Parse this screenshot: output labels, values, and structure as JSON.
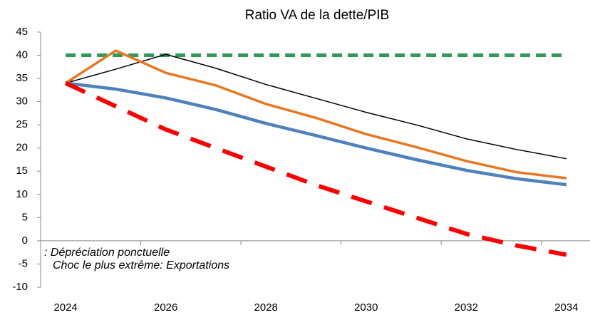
{
  "chart_data": {
    "type": "line",
    "title": "Ratio VA de la dette/PIB",
    "categories": [
      "2024",
      null,
      "2026",
      null,
      "2028",
      null,
      "2030",
      null,
      "2032",
      null,
      "2034"
    ],
    "series": [
      {
        "color": "#2e9a5a",
        "dash": "14 8",
        "width": 5,
        "values": [
          40,
          40,
          40,
          40,
          40,
          40,
          40,
          40,
          40,
          40,
          40
        ]
      },
      {
        "color": "#000000",
        "width": 1.5,
        "values": [
          34,
          37,
          40.2,
          37.2,
          33.7,
          30.7,
          27.7,
          25,
          22,
          19.7,
          17.7
        ]
      },
      {
        "color": "#e87722",
        "width": 3.5,
        "values": [
          34,
          41,
          36.2,
          33.5,
          29.5,
          26.5,
          23,
          20.2,
          17.2,
          14.8,
          13.5
        ]
      },
      {
        "color": "#4f81bd",
        "width": 4.5,
        "values": [
          34,
          32.7,
          30.8,
          28.3,
          25.3,
          22.7,
          20,
          17.5,
          15.2,
          13.4,
          12.1
        ]
      },
      {
        "color": "#ff0000",
        "dash": "30 18",
        "width": 6,
        "values": [
          34,
          29,
          24,
          20,
          16,
          12,
          8.5,
          5,
          1.5,
          -1,
          -3
        ]
      }
    ],
    "ylim": [
      -10,
      45
    ],
    "yticks": [
      -10,
      -5,
      0,
      5,
      10,
      15,
      20,
      25,
      30,
      35,
      40,
      45
    ],
    "annotations": [
      ": Dépréciation ponctuelle",
      "Choc le plus extrême: Exportations"
    ]
  }
}
